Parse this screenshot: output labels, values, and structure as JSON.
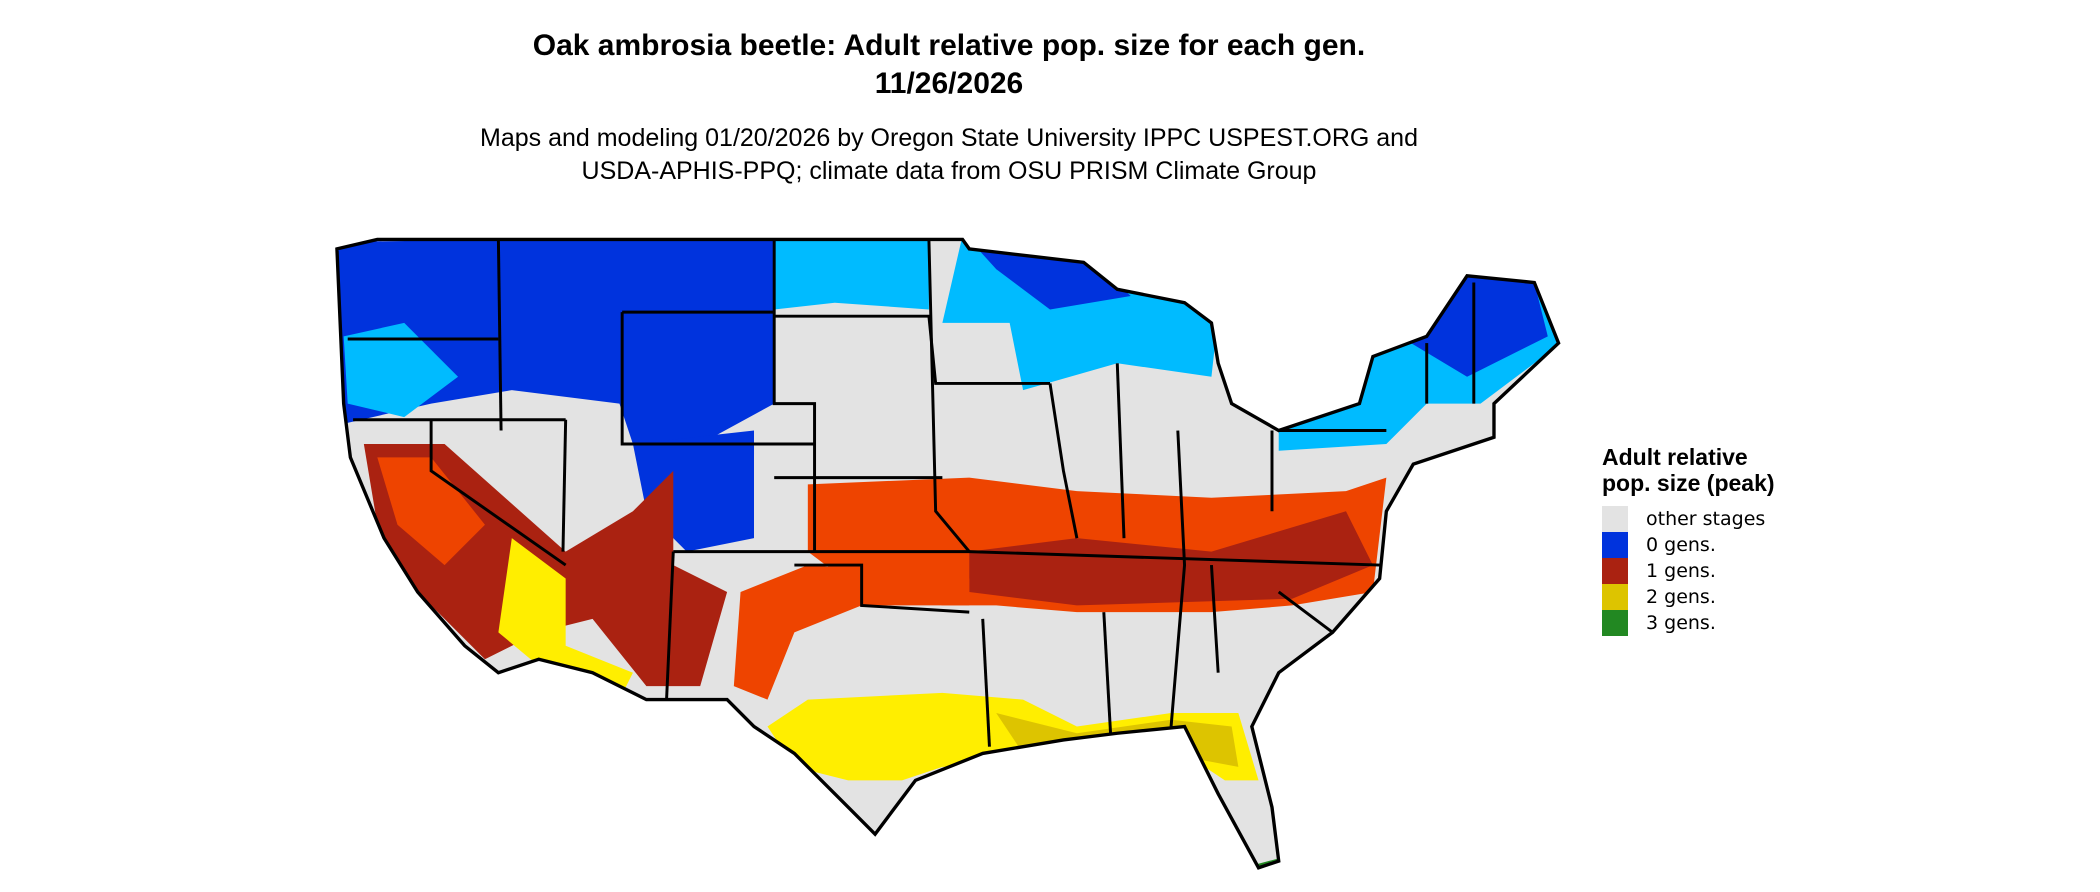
{
  "header": {
    "title": "Oak ambrosia beetle: Adult relative pop. size for each gen.",
    "date": "11/26/2026",
    "subtitle_line1": "Maps and modeling 01/20/2026 by Oregon State University IPPC USPEST.ORG and",
    "subtitle_line2": "USDA-APHIS-PPQ; climate data from OSU PRISM Climate Group"
  },
  "legend": {
    "title": "Adult relative pop. size (peak)",
    "items": [
      {
        "label": "other stages",
        "color": "#e3e3e3"
      },
      {
        "label": "0 gens.",
        "color": "#0033dd"
      },
      {
        "label": "1 gens.",
        "color": "#aa2211"
      },
      {
        "label": "2 gens.",
        "color": "#ddc400"
      },
      {
        "label": "3 gens.",
        "color": "#228822"
      }
    ]
  },
  "map": {
    "colors": {
      "base": "#e3e3e3",
      "blue_dark": "#0033dd",
      "blue_light": "#00bbff",
      "red_dark": "#aa2211",
      "red_orange": "#ee4400",
      "yellow": "#ddc400",
      "yellow_bright": "#ffee00",
      "green": "#228822",
      "border": "#000000"
    }
  }
}
